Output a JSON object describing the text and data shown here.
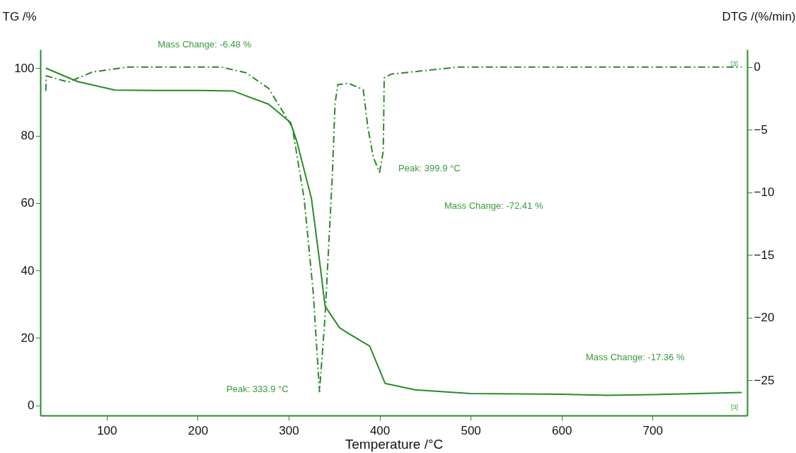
{
  "chart_data": {
    "type": "line",
    "xlabel": "Temperature /°C",
    "ylabel": "TG /%",
    "y2label": "DTG /(%/min)",
    "xlim": [
      27,
      804
    ],
    "xticks": [
      100,
      200,
      300,
      400,
      500,
      600,
      700
    ],
    "ylim": [
      -3,
      105.5
    ],
    "yticks": [
      0,
      20,
      40,
      60,
      80,
      100
    ],
    "y2lim": [
      -27.8,
      1.4
    ],
    "y2ticks": [
      -25,
      -20,
      -15,
      -10,
      -5,
      0
    ],
    "grid": false,
    "series": [
      {
        "color": "#2a8a2a",
        "line_style": "solid",
        "x": [
          33,
          68,
          109,
          150,
          200,
          239,
          278,
          302,
          309,
          325,
          335,
          340,
          356,
          367,
          389,
          406,
          439,
          500,
          600,
          650,
          700,
          798
        ],
        "values": [
          100,
          96,
          93.5,
          93.4,
          93.4,
          93.2,
          89.3,
          83.9,
          78.2,
          61.4,
          40.5,
          29.4,
          23,
          21.1,
          17.6,
          6.5,
          4.6,
          3.5,
          3.3,
          3,
          3.2,
          3.8
        ]
      },
      {
        "axis": "y2",
        "color": "#2a8a2a",
        "line_style": "dashed",
        "x": [
          33,
          33.5,
          58,
          84,
          123,
          180,
          226,
          253,
          278,
          304,
          317,
          327,
          333.9,
          340,
          348,
          351,
          354,
          366,
          382,
          387,
          393,
          399.9,
          404,
          405,
          413,
          486,
          600,
          700,
          798
        ],
        "values": [
          -1.9,
          -0.7,
          -1.2,
          -0.4,
          0,
          0,
          0,
          -0.45,
          -1.7,
          -4.8,
          -10.5,
          -18,
          -25.9,
          -19.9,
          -8.6,
          -2.9,
          -1.4,
          -1.3,
          -1.8,
          -4.8,
          -7.2,
          -8.4,
          -6.7,
          -0.85,
          -0.56,
          0,
          0,
          0,
          0
        ]
      }
    ],
    "annotations": [
      "Mass Change: -6.48 %",
      "[3]",
      "Peak: 399.9 °C",
      "Mass Change: -72.41 %",
      "Mass Change: -17.36 %",
      "Peak: 333.9 °C",
      "[3]"
    ]
  }
}
